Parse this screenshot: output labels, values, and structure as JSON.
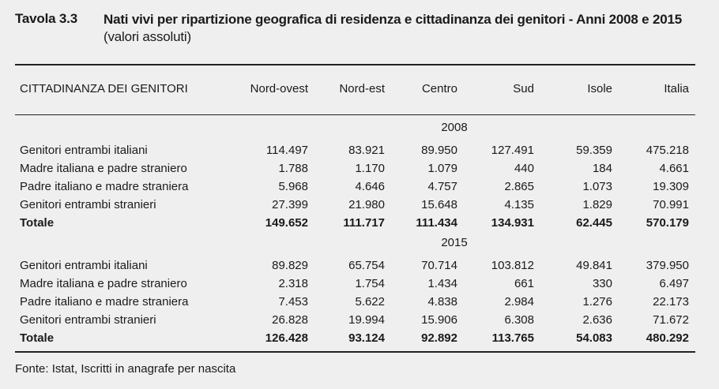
{
  "title": {
    "number": "Tavola 3.3",
    "text_bold": "Nati vivi per ripartizione geografica di residenza e cittadinanza dei genitori - Anni 2008 e 2015",
    "text_normal": "(valori assoluti)"
  },
  "table": {
    "header": {
      "label": "CITTADINANZA DEI GENITORI",
      "columns": [
        "Nord-ovest",
        "Nord-est",
        "Centro",
        "Sud",
        "Isole",
        "Italia"
      ]
    },
    "sections": [
      {
        "year": "2008",
        "rows": [
          {
            "label": "Genitori entrambi italiani",
            "values": [
              "114.497",
              "83.921",
              "89.950",
              "127.491",
              "59.359",
              "475.218"
            ]
          },
          {
            "label": "Madre italiana e padre straniero",
            "values": [
              "1.788",
              "1.170",
              "1.079",
              "440",
              "184",
              "4.661"
            ]
          },
          {
            "label": "Padre italiano e madre straniera",
            "values": [
              "5.968",
              "4.646",
              "4.757",
              "2.865",
              "1.073",
              "19.309"
            ]
          },
          {
            "label": "Genitori entrambi stranieri",
            "values": [
              "27.399",
              "21.980",
              "15.648",
              "4.135",
              "1.829",
              "70.991"
            ]
          }
        ],
        "total": {
          "label": "Totale",
          "values": [
            "149.652",
            "111.717",
            "111.434",
            "134.931",
            "62.445",
            "570.179"
          ]
        }
      },
      {
        "year": "2015",
        "rows": [
          {
            "label": "Genitori entrambi italiani",
            "values": [
              "89.829",
              "65.754",
              "70.714",
              "103.812",
              "49.841",
              "379.950"
            ]
          },
          {
            "label": "Madre italiana e padre straniero",
            "values": [
              "2.318",
              "1.754",
              "1.434",
              "661",
              "330",
              "6.497"
            ]
          },
          {
            "label": "Padre italiano e madre straniera",
            "values": [
              "7.453",
              "5.622",
              "4.838",
              "2.984",
              "1.276",
              "22.173"
            ]
          },
          {
            "label": "Genitori entrambi stranieri",
            "values": [
              "26.828",
              "19.994",
              "15.906",
              "6.308",
              "2.636",
              "71.672"
            ]
          }
        ],
        "total": {
          "label": "Totale",
          "values": [
            "126.428",
            "93.124",
            "92.892",
            "113.765",
            "54.083",
            "480.292"
          ]
        }
      }
    ]
  },
  "source": "Fonte: Istat, Iscritti in anagrafe per nascita"
}
